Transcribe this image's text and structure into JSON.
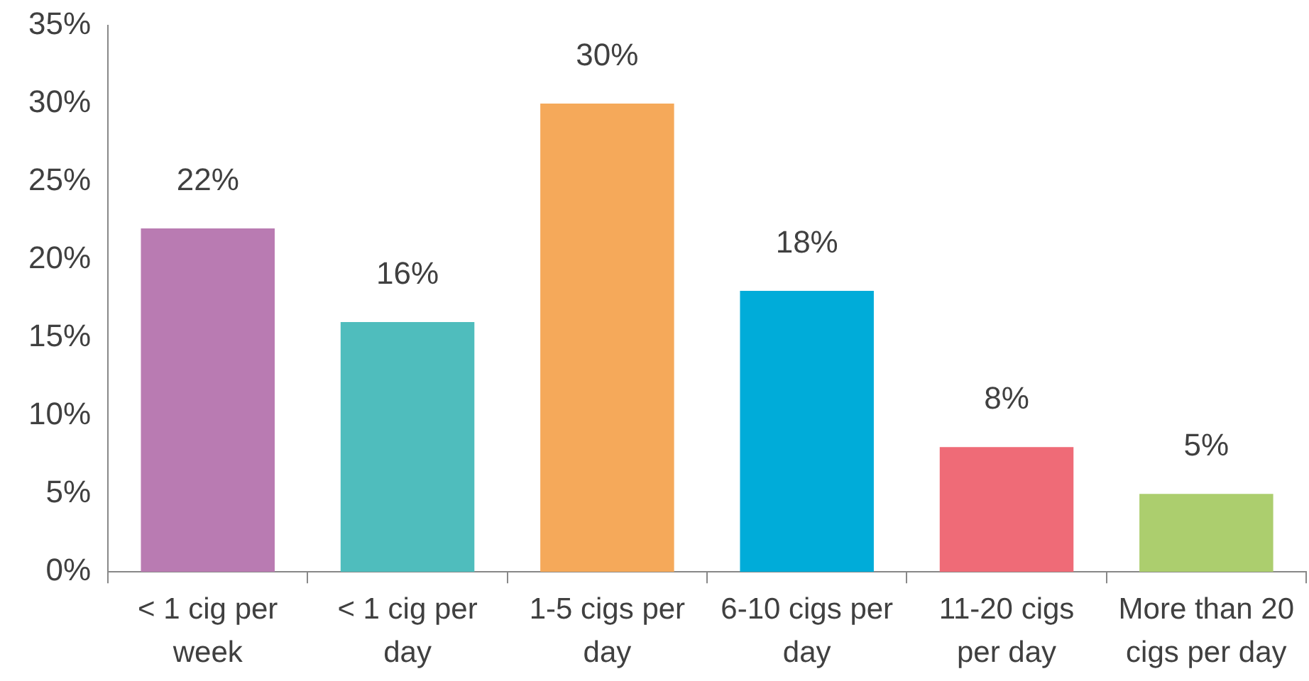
{
  "chart_data": {
    "type": "bar",
    "categories": [
      "< 1 cig per week",
      "< 1 cig per day",
      "1-5 cigs per day",
      "6-10 cigs per day",
      "11-20 cigs per day",
      "More than 20 cigs per day"
    ],
    "values": [
      22,
      16,
      30,
      18,
      8,
      5
    ],
    "colors": [
      "#b97bb2",
      "#4fbdbd",
      "#f5a95a",
      "#00acd9",
      "#ef6b77",
      "#acce6e"
    ],
    "value_labels": [
      "22%",
      "16%",
      "30%",
      "18%",
      "8%",
      "5%"
    ],
    "ylim": [
      0,
      35
    ],
    "yticks": [
      {
        "value": 0,
        "label": "0%"
      },
      {
        "value": 5,
        "label": "5%"
      },
      {
        "value": 10,
        "label": "10%"
      },
      {
        "value": 15,
        "label": "15%"
      },
      {
        "value": 20,
        "label": "20%"
      },
      {
        "value": 25,
        "label": "25%"
      },
      {
        "value": 30,
        "label": "30%"
      },
      {
        "value": 35,
        "label": "35%"
      }
    ],
    "grid": false,
    "legend": false
  }
}
